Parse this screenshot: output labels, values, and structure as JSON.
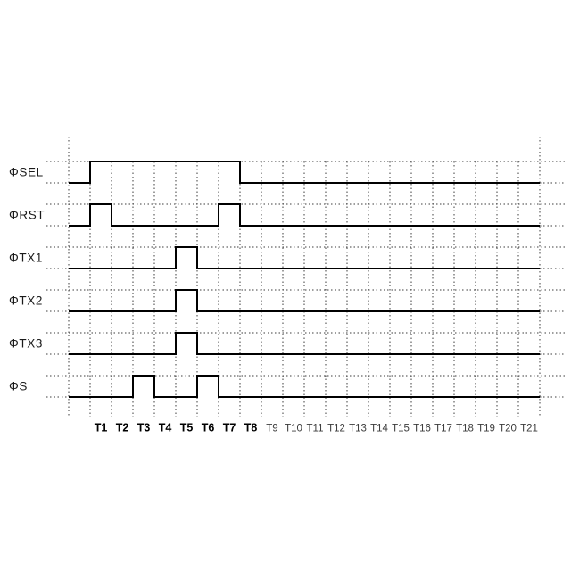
{
  "figure": {
    "kind": "timing-diagram",
    "background_color": "#ffffff",
    "waveform_color": "#000000",
    "grid_dot_color": "#3d3d3d",
    "signal_label_color": "#1a1a1a",
    "bold_tick_color": "#000000",
    "regular_tick_color": "#3d3d3d"
  },
  "chart_data": {
    "type": "timing",
    "title": "",
    "time_labels": [
      "T1",
      "T2",
      "T3",
      "T4",
      "T5",
      "T6",
      "T7",
      "T8",
      "T9",
      "T10",
      "T11",
      "T12",
      "T13",
      "T14",
      "T15",
      "T16",
      "T17",
      "T18",
      "T19",
      "T20",
      "T21"
    ],
    "bold_time_labels": [
      "T1",
      "T2",
      "T3",
      "T4",
      "T5",
      "T6",
      "T7",
      "T8"
    ],
    "levels": [
      "low",
      "high"
    ],
    "signals": [
      {
        "name": "ΦSEL",
        "id": "phi-sel",
        "initial": "low",
        "high_periods": [
          [
            1,
            7
          ]
        ]
      },
      {
        "name": "ΦRST",
        "id": "phi-rst",
        "initial": "low",
        "high_periods": [
          [
            1,
            1
          ],
          [
            7,
            7
          ]
        ]
      },
      {
        "name": "ΦTX1",
        "id": "phi-tx1",
        "initial": "low",
        "high_periods": [
          [
            5,
            5
          ]
        ]
      },
      {
        "name": "ΦTX2",
        "id": "phi-tx2",
        "initial": "low",
        "high_periods": [
          [
            5,
            5
          ]
        ]
      },
      {
        "name": "ΦTX3",
        "id": "phi-tx3",
        "initial": "low",
        "high_periods": [
          [
            5,
            5
          ]
        ]
      },
      {
        "name": "ΦS",
        "id": "phi-s",
        "initial": "low",
        "high_periods": [
          [
            3,
            3
          ],
          [
            6,
            6
          ]
        ]
      }
    ],
    "layout_hints": {
      "grid": "dotted",
      "x_axis_position": "bottom",
      "signal_labels_position": "left"
    }
  }
}
